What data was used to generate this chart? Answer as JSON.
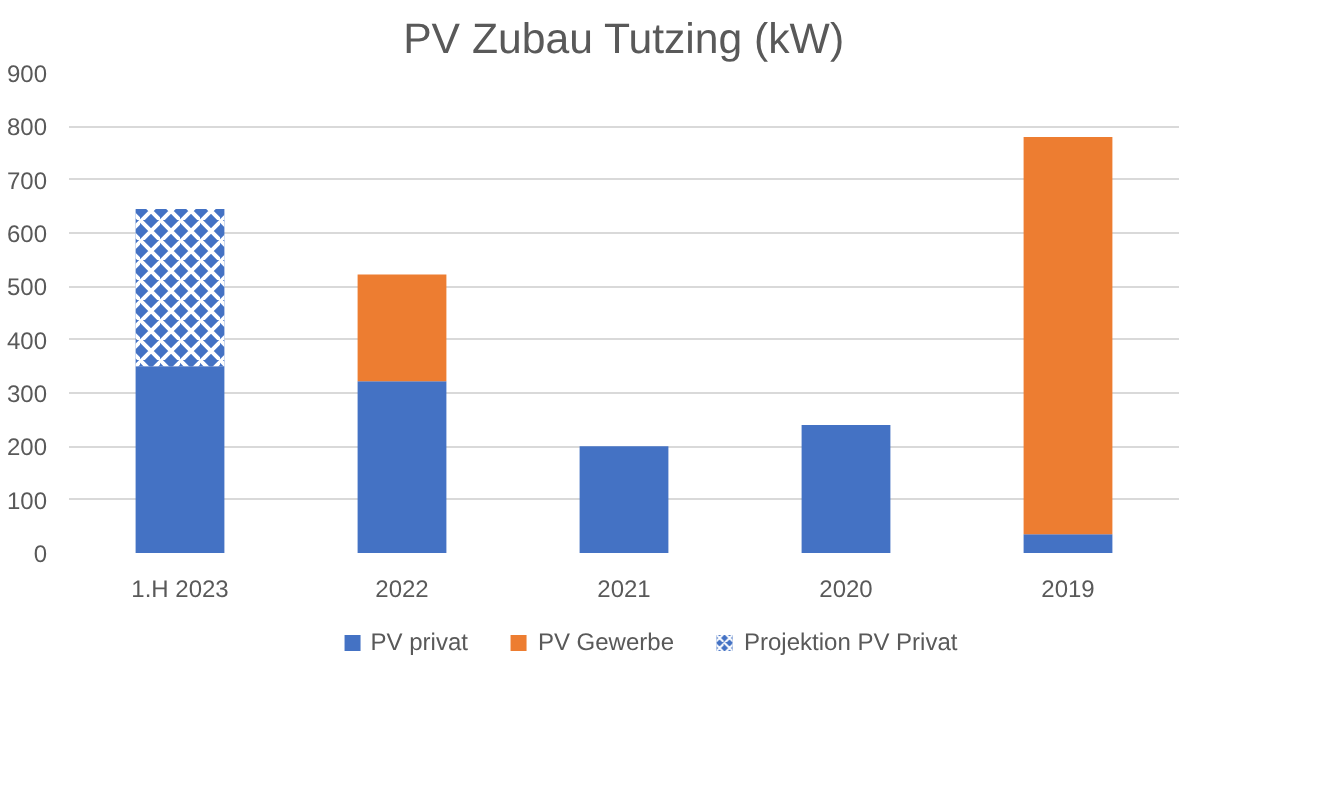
{
  "chart_data": {
    "type": "bar",
    "title": "PV Zubau Tutzing (kW)",
    "categories": [
      "1.H 2023",
      "2022",
      "2021",
      "2020",
      "2019"
    ],
    "stacked": true,
    "series": [
      {
        "name": "PV privat",
        "color": "#4472c4",
        "values": [
          350,
          322,
          200,
          240,
          35
        ]
      },
      {
        "name": "PV Gewerbe",
        "color": "#ed7d31",
        "values": [
          0,
          200,
          0,
          0,
          745
        ]
      },
      {
        "name": "Projektion PV Privat",
        "color": "#4472c4",
        "values": [
          295,
          0,
          0,
          0,
          0
        ]
      }
    ],
    "ylim": [
      0,
      900
    ],
    "yticks": [
      0,
      100,
      200,
      300,
      400,
      500,
      600,
      700,
      800,
      900
    ],
    "grid": "y",
    "legend": "bottom"
  }
}
